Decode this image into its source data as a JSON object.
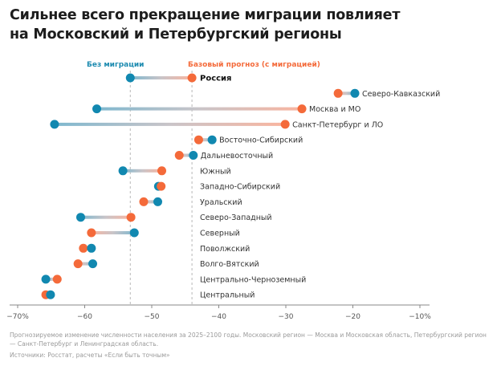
{
  "title_line1": "Сильнее всего прекращение миграции повлияет",
  "title_line2": "на Московский и Петербургский регионы",
  "legend": {
    "no_migration": "Без миграции",
    "baseline": "Базовый прогноз (с миграцией)"
  },
  "colors": {
    "no_migration": "#1188b0",
    "baseline": "#f46a3a"
  },
  "note": "Прогнозируемое изменение численности населения за 2025–2100 годы. Московский регион — Москва и Московская область, Петербургский регион — Санкт-Петербург и Ленинградская область.",
  "source": "Источники: Росстат, расчеты «Если быть точным»",
  "chart_data": {
    "type": "dumbbell",
    "title": "Сильнее всего прекращение миграции повлияет на Московский и Петербургский регионы",
    "xlabel": "Прогнозируемое изменение численности населения за 2025–2100 годы, %",
    "xlim": [
      -70,
      -10
    ],
    "xticks": [
      -70,
      -60,
      -50,
      -40,
      -30,
      -20,
      -10
    ],
    "xtick_labels": [
      "−70%",
      "−60",
      "−50",
      "−40",
      "−30",
      "−20",
      "−10%"
    ],
    "reference_lines": {
      "no_migration": -53.2,
      "baseline": -44.0
    },
    "series": [
      {
        "name": "Без миграции",
        "key": "no_migration"
      },
      {
        "name": "Базовый прогноз (с миграцией)",
        "key": "baseline"
      }
    ],
    "rows": [
      {
        "label": "Россия",
        "no_migration": -53.2,
        "baseline": -44.0,
        "bold": true
      },
      {
        "label": "Северо-Кавказский",
        "no_migration": -19.7,
        "baseline": -22.2
      },
      {
        "label": "Москва и МО",
        "no_migration": -58.2,
        "baseline": -27.6
      },
      {
        "label": "Санкт-Петербург и ЛО",
        "no_migration": -64.5,
        "baseline": -30.1
      },
      {
        "label": "Восточно-Сибирский",
        "no_migration": -41.0,
        "baseline": -43.0
      },
      {
        "label": "Дальневосточный",
        "no_migration": -43.8,
        "baseline": -45.9
      },
      {
        "label": "Южный",
        "no_migration": -54.3,
        "baseline": -48.5
      },
      {
        "label": "Западно-Сибирский",
        "no_migration": -49.0,
        "baseline": -48.6
      },
      {
        "label": "Уральский",
        "no_migration": -49.1,
        "baseline": -51.2
      },
      {
        "label": "Северо-Западный",
        "no_migration": -60.6,
        "baseline": -53.1
      },
      {
        "label": "Северный",
        "no_migration": -52.6,
        "baseline": -59.0
      },
      {
        "label": "Поволжский",
        "no_migration": -59.0,
        "baseline": -60.2
      },
      {
        "label": "Волго-Вятский",
        "no_migration": -58.8,
        "baseline": -61.0
      },
      {
        "label": "Центрально-Черноземный",
        "no_migration": -65.8,
        "baseline": -64.1
      },
      {
        "label": "Центральный",
        "no_migration": -65.1,
        "baseline": -65.8
      }
    ]
  }
}
